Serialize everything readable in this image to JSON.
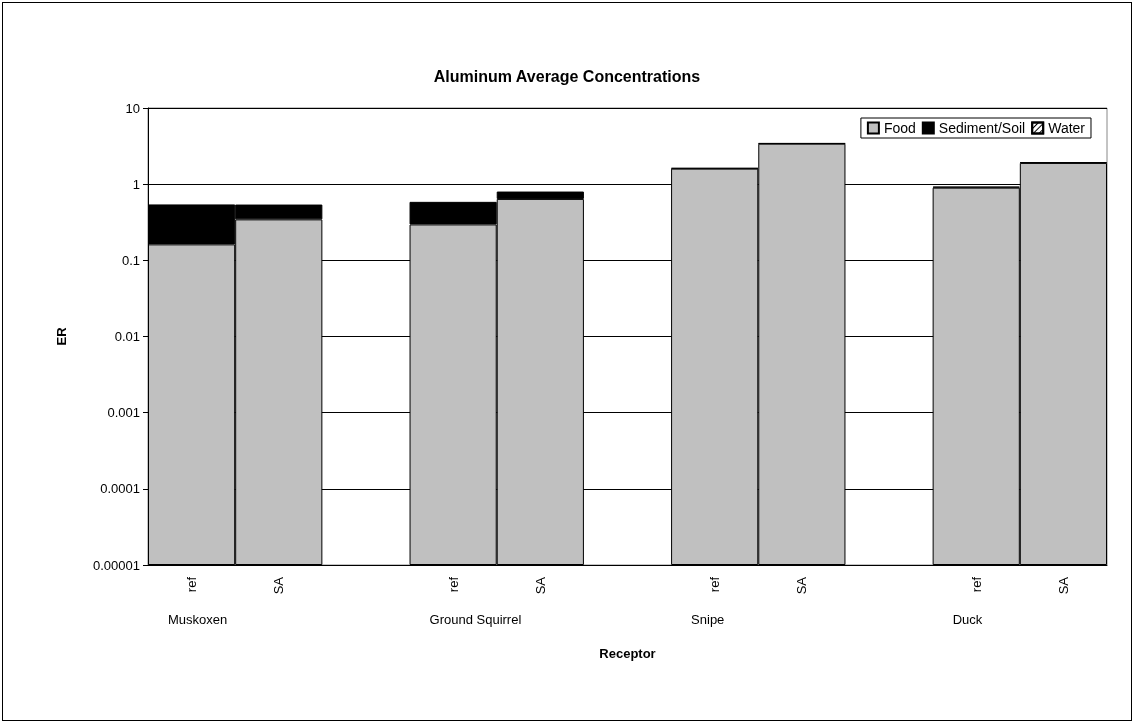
{
  "chart_data": {
    "type": "bar",
    "title": "Aluminum Average Concentrations",
    "xlabel": "Receptor",
    "ylabel": "ER",
    "categories": [
      "ref",
      "SA",
      null,
      "ref",
      "SA",
      null,
      "ref",
      "SA",
      null,
      "ref",
      "SA"
    ],
    "annotations": [
      "Muskoxen",
      "Ground Squirrel",
      "Snipe",
      "Duck"
    ],
    "stacked": true,
    "log": "y",
    "ylim": [
      1e-05,
      10
    ],
    "yticks": [
      {
        "value": 1e-05,
        "label": "0.00001"
      },
      0.0001,
      0.001,
      0.01,
      0.1,
      1,
      10
    ],
    "grid": "y",
    "legend": "top right",
    "series": [
      {
        "name": "Food",
        "color": "#c0c0c0",
        "values": [
          0.162,
          0.345,
          null,
          0.296,
          0.64,
          null,
          1.6,
          3.4,
          null,
          0.9,
          1.9
        ]
      },
      {
        "name": "Sediment/Soil",
        "color": "#000000",
        "values": [
          0.38,
          0.195,
          null,
          0.29,
          0.16,
          null,
          0.03,
          0.05,
          null,
          0.03,
          0.04
        ]
      },
      {
        "name": "Water",
        "values": [
          null,
          null,
          null,
          null,
          null,
          null,
          null,
          null,
          null,
          null,
          null
        ]
      }
    ]
  }
}
